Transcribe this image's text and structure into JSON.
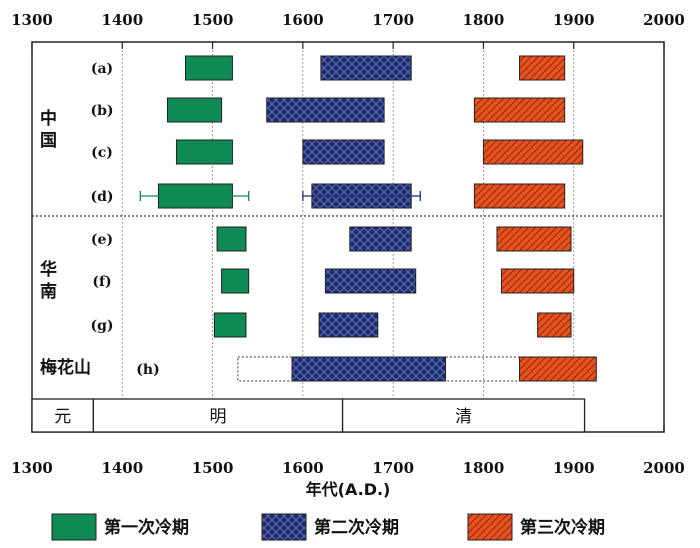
{
  "chart_data": {
    "type": "range-bar",
    "xlabel": "年代(A.D.)",
    "xlim": [
      1300,
      2000
    ],
    "xticks": [
      1300,
      1400,
      1500,
      1600,
      1700,
      1800,
      1900,
      2000
    ],
    "grid": true,
    "regions": [
      {
        "label": "中国",
        "rows": [
          "(a)",
          "(b)",
          "(c)",
          "(d)"
        ]
      },
      {
        "label": "华南",
        "rows": [
          "(e)",
          "(f)",
          "(g)"
        ]
      },
      {
        "label": "梅花山",
        "rows": [
          "(h)"
        ]
      }
    ],
    "series": [
      {
        "name": "第一次冷期",
        "color": "#0e8a55",
        "pattern": "solid"
      },
      {
        "name": "第二次冷期",
        "color": "#1c2a6e",
        "pattern": "crosshatch"
      },
      {
        "name": "第三次冷期",
        "color": "#e8521f",
        "pattern": "diagonal"
      }
    ],
    "rows": [
      {
        "label": "(a)",
        "bars": [
          [
            1470,
            1522
          ],
          [
            1620,
            1720
          ],
          [
            1840,
            1890
          ]
        ]
      },
      {
        "label": "(b)",
        "bars": [
          [
            1450,
            1510
          ],
          [
            1560,
            1690
          ],
          [
            1790,
            1890
          ]
        ]
      },
      {
        "label": "(c)",
        "bars": [
          [
            1460,
            1522
          ],
          [
            1600,
            1690
          ],
          [
            1800,
            1910
          ]
        ]
      },
      {
        "label": "(d)",
        "bars": [
          [
            1440,
            1522
          ],
          [
            1610,
            1720
          ],
          [
            1790,
            1890
          ]
        ],
        "error_bars": [
          [
            1420,
            1540
          ],
          [
            1600,
            1730
          ]
        ]
      },
      {
        "label": "(e)",
        "bars": [
          [
            1505,
            1537
          ],
          [
            1652,
            1720
          ],
          [
            1815,
            1897
          ]
        ]
      },
      {
        "label": "(f)",
        "bars": [
          [
            1510,
            1540
          ],
          [
            1625,
            1725
          ],
          [
            1820,
            1900
          ]
        ]
      },
      {
        "label": "(g)",
        "bars": [
          [
            1502,
            1537
          ],
          [
            1618,
            1683
          ],
          [
            1860,
            1897
          ]
        ]
      },
      {
        "label": "(h)",
        "bars": [
          [
            null,
            null
          ],
          [
            1588,
            1758
          ],
          [
            1840,
            1925
          ]
        ],
        "dotted_range": [
          1528,
          1840
        ]
      }
    ],
    "dynasties": [
      {
        "label": "元",
        "start": 1300,
        "end": 1368
      },
      {
        "label": "明",
        "start": 1368,
        "end": 1644
      },
      {
        "label": "清",
        "start": 1644,
        "end": 1912
      }
    ]
  }
}
